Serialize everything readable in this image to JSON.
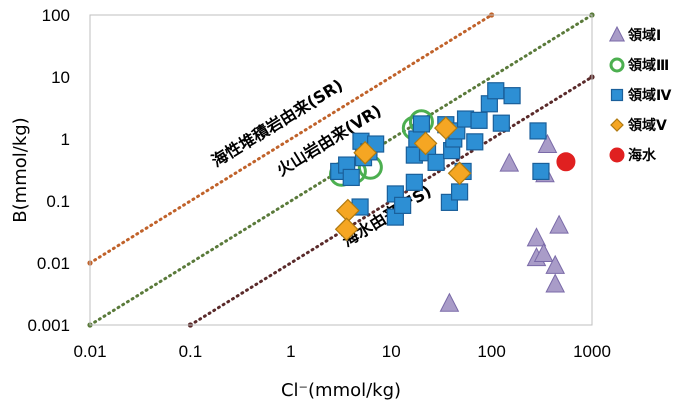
{
  "chart_data": {
    "type": "scatter",
    "xscale": "log",
    "yscale": "log",
    "xlim": [
      0.01,
      1000
    ],
    "ylim": [
      0.001,
      100
    ],
    "xlabel": "Cl⁻(mmol/kg)",
    "ylabel": "B(mmol/kg)",
    "x_ticks": [
      "0.01",
      "0.1",
      "1",
      "10",
      "100",
      "1000"
    ],
    "y_ticks": [
      "0.001",
      "0.01",
      "0.1",
      "1",
      "10",
      "100"
    ],
    "reference_lines": [
      {
        "label": "海性堆積岩由来(SR)",
        "color": "#c0622a",
        "points": [
          [
            0.01,
            0.01
          ],
          [
            100,
            100
          ]
        ]
      },
      {
        "label": "火山岩由来(VR)",
        "color": "#5a7a3a",
        "points": [
          [
            0.01,
            0.001
          ],
          [
            1000,
            100
          ]
        ]
      },
      {
        "label": "海水由来(FS)",
        "color": "#5a2a2a",
        "points": [
          [
            0.1,
            0.001
          ],
          [
            1000,
            10
          ]
        ]
      }
    ],
    "series": [
      {
        "name": "領域Ⅰ",
        "marker": "triangle",
        "color": "#a99cc8",
        "stroke": "#7a6aa8",
        "points": [
          [
            38,
            0.0022
          ],
          [
            150,
            0.4
          ],
          [
            360,
            0.8
          ],
          [
            340,
            0.27
          ],
          [
            280,
            0.025
          ],
          [
            280,
            0.012
          ],
          [
            330,
            0.014
          ],
          [
            470,
            0.04
          ],
          [
            430,
            0.009
          ],
          [
            430,
            0.0045
          ]
        ]
      },
      {
        "name": "領域Ⅲ",
        "marker": "ring",
        "color": "#4caf50",
        "stroke": "#4caf50",
        "points": [
          [
            3.2,
            0.27
          ],
          [
            4.3,
            0.3
          ],
          [
            6.2,
            0.35
          ],
          [
            17,
            1.5
          ],
          [
            20,
            1.9
          ]
        ]
      },
      {
        "name": "領域Ⅳ",
        "marker": "square",
        "color": "#2d8fd4",
        "stroke": "#1a5f9a",
        "points": [
          [
            3.0,
            0.3
          ],
          [
            3.6,
            0.38
          ],
          [
            4.0,
            0.24
          ],
          [
            5.0,
            0.92
          ],
          [
            5.3,
            0.5
          ],
          [
            6.0,
            0.62
          ],
          [
            7.0,
            0.83
          ],
          [
            4.9,
            0.08
          ],
          [
            11,
            0.13
          ],
          [
            11,
            0.055
          ],
          [
            13,
            0.085
          ],
          [
            17,
            0.2
          ],
          [
            17,
            0.55
          ],
          [
            18,
            1.0
          ],
          [
            20,
            1.75
          ],
          [
            23,
            0.6
          ],
          [
            28,
            0.42
          ],
          [
            35,
            1.7
          ],
          [
            38,
            0.095
          ],
          [
            40,
            0.65
          ],
          [
            42,
            1.0
          ],
          [
            45,
            1.35
          ],
          [
            48,
            0.14
          ],
          [
            52,
            0.3
          ],
          [
            55,
            2.1
          ],
          [
            68,
            0.9
          ],
          [
            75,
            2.0
          ],
          [
            95,
            3.7
          ],
          [
            110,
            6.0
          ],
          [
            125,
            1.8
          ],
          [
            160,
            5.0
          ],
          [
            290,
            1.35
          ],
          [
            310,
            0.3
          ]
        ]
      },
      {
        "name": "領域Ⅴ",
        "marker": "diamond",
        "color": "#f5a623",
        "stroke": "#b07a10",
        "points": [
          [
            3.7,
            0.07
          ],
          [
            3.6,
            0.035
          ],
          [
            5.5,
            0.6
          ],
          [
            22,
            0.85
          ],
          [
            35,
            1.5
          ],
          [
            48,
            0.28
          ]
        ]
      },
      {
        "name": "海水",
        "marker": "circle",
        "color": "#e02020",
        "stroke": "#e02020",
        "points": [
          [
            550,
            0.43
          ]
        ]
      }
    ],
    "legend_position": "right",
    "grid": false
  }
}
